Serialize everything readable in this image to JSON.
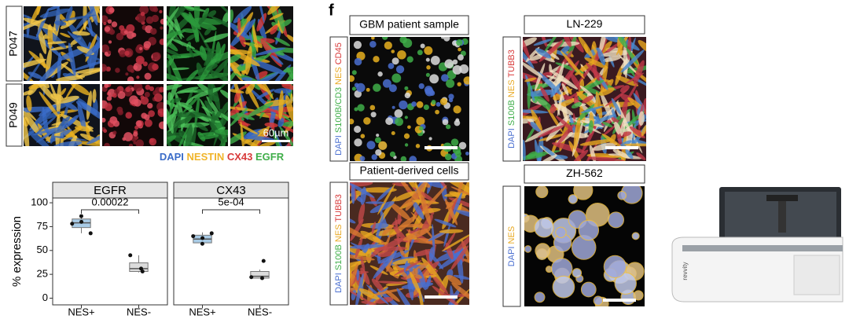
{
  "figure_a": {
    "rows": [
      "P047",
      "P049"
    ],
    "scale_bar": "60µm",
    "legend": [
      {
        "text": "DAPI",
        "color": "#3a6cc8"
      },
      {
        "text": "NESTIN",
        "color": "#f0b429"
      },
      {
        "text": "CX43",
        "color": "#d83a3a"
      },
      {
        "text": "EGFR",
        "color": "#3fae49"
      }
    ]
  },
  "chart_data": {
    "type": "box",
    "ylabel": "% expression",
    "ylim": [
      -7,
      105
    ],
    "yticks": [
      0,
      25,
      50,
      75,
      100
    ],
    "categories": [
      "NES+",
      "NES-"
    ],
    "colors": [
      "#a8cbe6",
      "#dcdcdc"
    ],
    "facets": [
      {
        "title": "EGFR",
        "annotation": "0.00022",
        "boxes": [
          {
            "low": 68,
            "q1": 74,
            "median": 79,
            "q3": 83,
            "high": 86,
            "points": [
              78,
              80,
              86,
              68
            ]
          },
          {
            "low": 27,
            "q1": 28,
            "median": 31,
            "q3": 37,
            "high": 45,
            "points": [
              45,
              31,
              28
            ]
          }
        ]
      },
      {
        "title": "CX43",
        "annotation": "5e-04",
        "boxes": [
          {
            "low": 57,
            "q1": 58,
            "median": 62,
            "q3": 66,
            "high": 69,
            "points": [
              65,
              63,
              57,
              68
            ]
          },
          {
            "low": 21,
            "q1": 21,
            "median": 23,
            "q3": 28,
            "high": 30,
            "points": [
              22,
              21,
              39
            ]
          }
        ]
      }
    ]
  },
  "panel_f": {
    "label": "f",
    "images": [
      {
        "title": "GBM patient sample",
        "stain": [
          {
            "text": "DAPI",
            "color": "#4a6fd0"
          },
          {
            "text": "S100B/CD3",
            "color": "#3fae49"
          },
          {
            "text": "NES",
            "color": "#e8a820"
          },
          {
            "text": "CD45",
            "color": "#d83a3a"
          }
        ]
      },
      {
        "title": "Patient-derived cells",
        "stain": [
          {
            "text": "DAPI",
            "color": "#4a6fd0"
          },
          {
            "text": "S100B",
            "color": "#3fae49"
          },
          {
            "text": "NES",
            "color": "#e8a820"
          },
          {
            "text": "TUBB3",
            "color": "#d83a3a"
          }
        ]
      },
      {
        "title": "LN-229",
        "stain": [
          {
            "text": "DAPI",
            "color": "#4a6fd0"
          },
          {
            "text": "S100B",
            "color": "#3fae49"
          },
          {
            "text": "NES",
            "color": "#e8a820"
          },
          {
            "text": "TUBB3",
            "color": "#d83a3a"
          }
        ]
      },
      {
        "title": "ZH-562",
        "stain": [
          {
            "text": "DAPI",
            "color": "#4a6fd0"
          },
          {
            "text": "NES",
            "color": "#e8a820"
          }
        ]
      }
    ]
  },
  "instrument": {
    "brand": "revvity"
  }
}
